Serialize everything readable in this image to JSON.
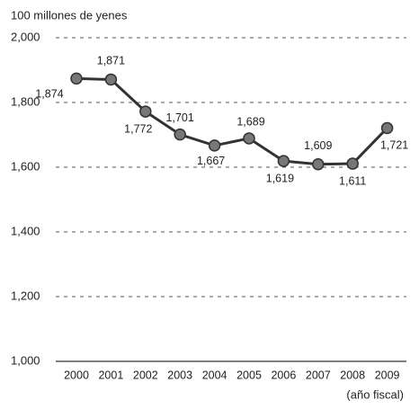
{
  "chart_data": {
    "type": "line",
    "title": "100 millones de yenes",
    "x_label": "(año fiscal)",
    "categories": [
      "2000",
      "2001",
      "2002",
      "2003",
      "2004",
      "2005",
      "2006",
      "2007",
      "2008",
      "2009"
    ],
    "series": [
      {
        "color": "#333333",
        "values": [
          1874,
          1871,
          1772,
          1701,
          1667,
          1689,
          1619,
          1609,
          1611,
          1721
        ],
        "value_labels": [
          "1,874",
          "1,871",
          "1,772",
          "1,701",
          "1,667",
          "1,689",
          "1,619",
          "1,609",
          "1,611",
          "1,721"
        ]
      }
    ],
    "ylim": [
      1000,
      2000
    ],
    "yticks": [
      {
        "value": 1000,
        "label": "1,000"
      },
      {
        "value": 1200,
        "label": "1,200"
      },
      {
        "value": 1400,
        "label": "1,400"
      },
      {
        "value": 1600,
        "label": "1,600"
      },
      {
        "value": 1800,
        "label": "1,800"
      },
      {
        "value": 2000,
        "label": "2,000"
      }
    ],
    "grid": true
  }
}
